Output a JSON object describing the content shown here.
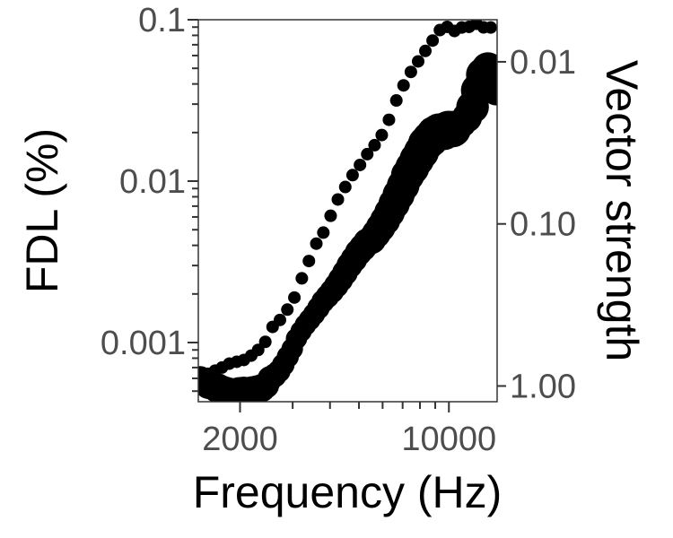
{
  "chart_data": {
    "type": "scatter",
    "title": "",
    "xlabel": "Frequency (Hz)",
    "ylabel": "FDL (%)",
    "y2label": "Vector strength",
    "x_scale": "log",
    "y_scale": "log",
    "y2_scale": "log, reversed",
    "xlim": [
      1450,
      14500
    ],
    "ylim": [
      0.00043,
      0.1
    ],
    "y2lim": [
      1.25,
      0.0055
    ],
    "x_ticks": [
      {
        "value": 2000,
        "label": "2000"
      },
      {
        "value": 10000,
        "label": "10000"
      }
    ],
    "y_ticks": [
      {
        "value": 0.001,
        "label": "0.001"
      },
      {
        "value": 0.01,
        "label": "0.01"
      },
      {
        "value": 0.1,
        "label": "0.1"
      }
    ],
    "y2_ticks": [
      {
        "value": 0.01,
        "label": "0.01"
      },
      {
        "value": 0.1,
        "label": "0.10"
      },
      {
        "value": 1,
        "label": "1.00"
      }
    ],
    "grid": false,
    "series": [
      {
        "role": "small-markers",
        "axis": "left",
        "color": "#000000",
        "x": [
          1475,
          1560,
          1650,
          1740,
          1840,
          1950,
          2060,
          2180,
          2300,
          2430,
          2570,
          2720,
          2880,
          3040,
          3220,
          3400,
          3600,
          3800,
          4020,
          4250,
          4500,
          4760,
          5040,
          5330,
          5640,
          5960,
          6300,
          6670,
          7050,
          7460,
          7890,
          8340,
          8820,
          9330,
          9870,
          10440,
          11040,
          11680,
          12350,
          13060,
          13800
        ],
        "y": [
          0.00062,
          0.00064,
          0.00067,
          0.0007,
          0.00074,
          0.00076,
          0.00078,
          0.00083,
          0.0009,
          0.00101,
          0.00125,
          0.00138,
          0.0016,
          0.0019,
          0.0025,
          0.0032,
          0.0041,
          0.0048,
          0.0061,
          0.0077,
          0.0092,
          0.0109,
          0.0126,
          0.0147,
          0.0167,
          0.0193,
          0.024,
          0.0316,
          0.0392,
          0.0475,
          0.0552,
          0.0641,
          0.0743,
          0.0863,
          0.0903,
          0.0852,
          0.0895,
          0.0903,
          0.0944,
          0.0897,
          0.0895
        ]
      },
      {
        "role": "large-markers",
        "axis": "right",
        "color": "#000000",
        "x": [
          1470,
          1520,
          1570,
          1620,
          1680,
          1740,
          1800,
          1860,
          1925,
          1990,
          2060,
          2130,
          2200,
          2280,
          2360,
          2440,
          2520,
          2610,
          2700,
          2790,
          2890,
          2990,
          3090,
          3200,
          3310,
          3420,
          3540,
          3660,
          3790,
          3920,
          4060,
          4200,
          4340,
          4490,
          4650,
          4810,
          4980,
          5150,
          5330,
          5520,
          5710,
          5910,
          6120,
          6330,
          6560,
          6790,
          7030,
          7280,
          7540,
          7810,
          8090,
          8370,
          8660,
          8960,
          9290,
          9620,
          9960,
          10300,
          10700,
          11100,
          11500,
          12000,
          12500,
          13000,
          13500,
          14000,
          14400
        ],
        "y": [
          0.9,
          0.94,
          0.99,
          0.99,
          1.03,
          1.07,
          1.1,
          1.12,
          1.13,
          1.11,
          1.1,
          1.1,
          1.08,
          1.06,
          1.03,
          0.99,
          0.9,
          0.86,
          0.81,
          0.74,
          0.66,
          0.59,
          0.51,
          0.46,
          0.42,
          0.39,
          0.36,
          0.33,
          0.3,
          0.28,
          0.26,
          0.24,
          0.22,
          0.2,
          0.18,
          0.165,
          0.15,
          0.14,
          0.13,
          0.125,
          0.115,
          0.105,
          0.095,
          0.085,
          0.075,
          0.066,
          0.058,
          0.05,
          0.045,
          0.04,
          0.036,
          0.032,
          0.03,
          0.028,
          0.027,
          0.027,
          0.026,
          0.026,
          0.025,
          0.024,
          0.022,
          0.019,
          0.015,
          0.012,
          0.011,
          0.012,
          0.015
        ],
        "sizes": [
          1.0,
          1.05,
          1.1,
          1.12,
          1.18,
          1.22,
          1.26,
          1.28,
          1.3,
          1.3,
          1.28,
          1.25,
          1.22,
          1.18,
          1.12,
          1.06,
          1.0,
          0.96,
          0.92,
          0.9,
          0.88,
          0.86,
          0.85,
          0.85,
          0.86,
          0.87,
          0.88,
          0.9,
          0.92,
          0.94,
          0.96,
          0.98,
          1.0,
          1.02,
          1.04,
          1.06,
          1.08,
          1.1,
          1.12,
          1.14,
          1.16,
          1.18,
          1.2,
          1.22,
          1.25,
          1.28,
          1.3,
          1.33,
          1.36,
          1.38,
          1.4,
          1.42,
          1.45,
          1.46,
          1.47,
          1.47,
          1.46,
          1.45,
          1.0,
          1.1,
          1.2,
          1.3,
          1.35,
          1.35,
          1.3,
          1.25,
          1.2
        ]
      }
    ],
    "line": {
      "color": "#3366ff",
      "axis": "right",
      "x": [
        9960,
        10700,
        11500,
        12500,
        13000
      ],
      "y": [
        0.026,
        0.025,
        0.022,
        0.015,
        0.012
      ]
    }
  }
}
